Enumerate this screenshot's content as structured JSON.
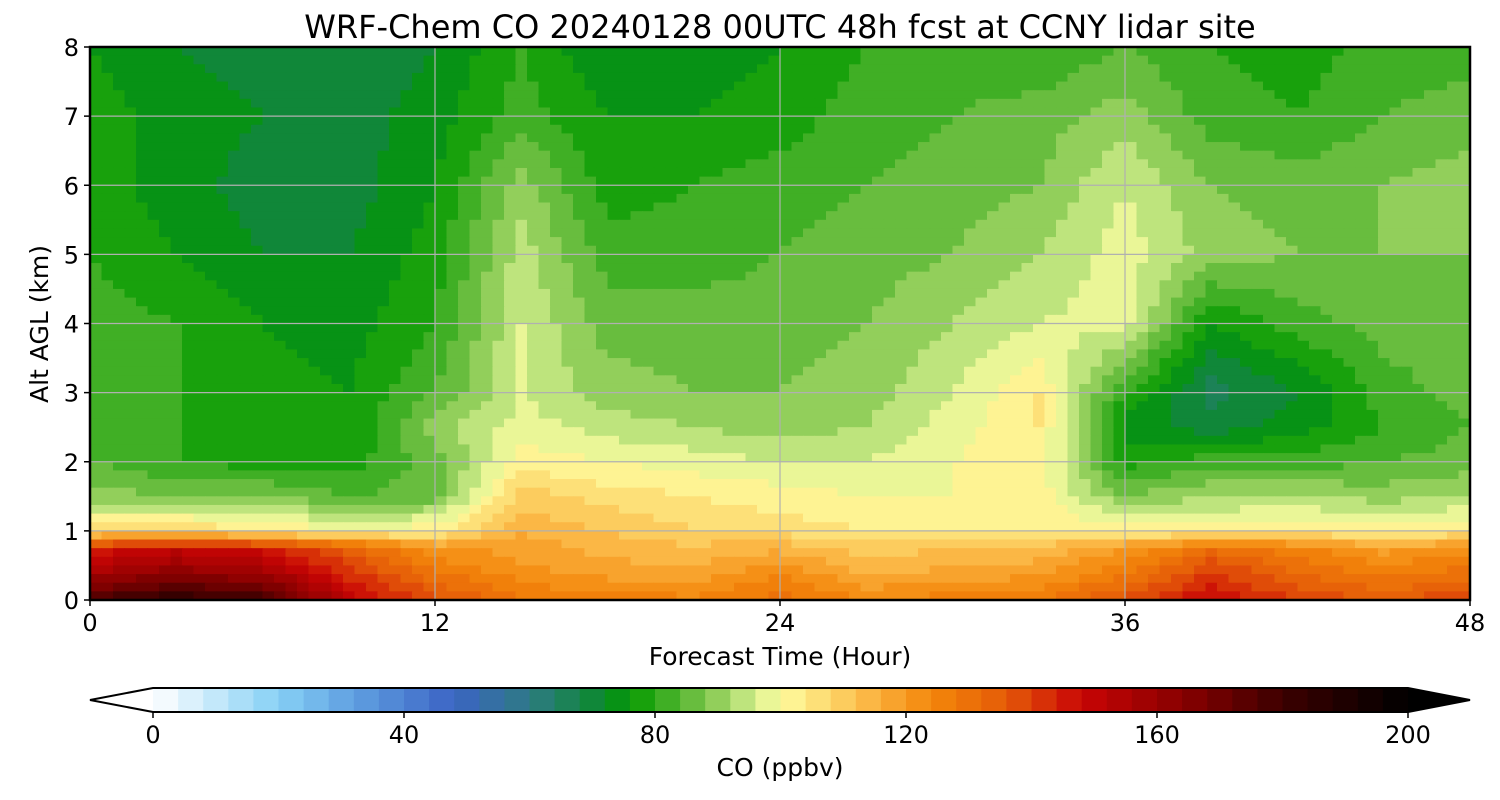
{
  "chart_data": {
    "type": "heatmap",
    "title": "WRF-Chem CO  20240128 00UTC 48h fcst at CCNY lidar site",
    "xlabel": "Forecast Time (Hour)",
    "ylabel": "Alt AGL (km)",
    "xlim": [
      0,
      48
    ],
    "ylim": [
      0,
      8
    ],
    "xticks": [
      0,
      12,
      24,
      36,
      48
    ],
    "yticks": [
      0,
      1,
      2,
      3,
      4,
      5,
      6,
      7,
      8
    ],
    "grid": true,
    "colorbar": {
      "label": "CO  (ppbv)",
      "range": [
        0,
        200
      ],
      "ticks": [
        0,
        40,
        80,
        120,
        160,
        200
      ],
      "extend": "both",
      "levels_step": 4,
      "colors": {
        "0": "#ffffff",
        "20": "#86d0f5",
        "32": "#5f9fe0",
        "48": "#3b64c4",
        "60": "#2e7a84",
        "72": "#0a8a2a",
        "76": "#049a00",
        "88": "#7cc44a",
        "96": "#d4ef8e",
        "100": "#fffca0",
        "108": "#fcd76a",
        "116": "#faac38",
        "124": "#f3870a",
        "136": "#e55a08",
        "148": "#c80505",
        "164": "#880000",
        "180": "#3c0000",
        "200": "#000000"
      }
    },
    "x": [
      0,
      3,
      6,
      9,
      12,
      15,
      18,
      21,
      24,
      27,
      30,
      33,
      36,
      39,
      42,
      45,
      48
    ],
    "y": [
      0,
      0.25,
      0.5,
      0.75,
      1.0,
      1.5,
      2.0,
      2.5,
      3.0,
      4.0,
      5.0,
      6.0,
      7.0,
      8.0
    ],
    "z": [
      [
        178,
        185,
        180,
        150,
        138,
        128,
        126,
        125,
        130,
        124,
        126,
        128,
        138,
        148,
        140,
        135,
        140
      ],
      [
        162,
        170,
        165,
        145,
        132,
        124,
        121,
        120,
        126,
        118,
        120,
        122,
        130,
        144,
        134,
        130,
        132
      ],
      [
        152,
        158,
        154,
        140,
        126,
        120,
        117,
        116,
        120,
        114,
        115,
        117,
        125,
        138,
        130,
        124,
        128
      ],
      [
        144,
        150,
        146,
        134,
        120,
        119,
        114,
        113,
        115,
        110,
        112,
        113,
        120,
        130,
        125,
        118,
        122
      ],
      [
        106,
        108,
        104,
        100,
        103,
        115,
        112,
        108,
        106,
        104,
        103,
        104,
        102,
        102,
        104,
        102,
        104
      ],
      [
        90,
        88,
        88,
        84,
        86,
        110,
        106,
        104,
        102,
        100,
        100,
        102,
        88,
        92,
        92,
        90,
        92
      ],
      [
        84,
        80,
        78,
        78,
        86,
        102,
        100,
        98,
        96,
        96,
        100,
        103,
        78,
        82,
        82,
        84,
        86
      ],
      [
        82,
        80,
        78,
        76,
        90,
        98,
        94,
        92,
        90,
        92,
        98,
        104,
        74,
        70,
        74,
        80,
        84
      ],
      [
        82,
        80,
        78,
        76,
        84,
        96,
        90,
        88,
        88,
        90,
        96,
        104,
        80,
        66,
        72,
        82,
        86
      ],
      [
        82,
        80,
        76,
        74,
        80,
        96,
        86,
        86,
        86,
        88,
        92,
        96,
        98,
        76,
        82,
        86,
        86
      ],
      [
        80,
        76,
        72,
        72,
        78,
        94,
        82,
        82,
        84,
        86,
        88,
        92,
        98,
        90,
        88,
        88,
        88
      ],
      [
        78,
        74,
        70,
        70,
        76,
        90,
        78,
        80,
        82,
        84,
        86,
        88,
        96,
        88,
        86,
        88,
        90
      ],
      [
        78,
        74,
        72,
        70,
        74,
        82,
        76,
        76,
        78,
        82,
        84,
        86,
        90,
        82,
        80,
        84,
        86
      ],
      [
        76,
        72,
        70,
        68,
        72,
        80,
        72,
        74,
        76,
        80,
        82,
        80,
        84,
        80,
        78,
        82,
        82
      ]
    ]
  }
}
